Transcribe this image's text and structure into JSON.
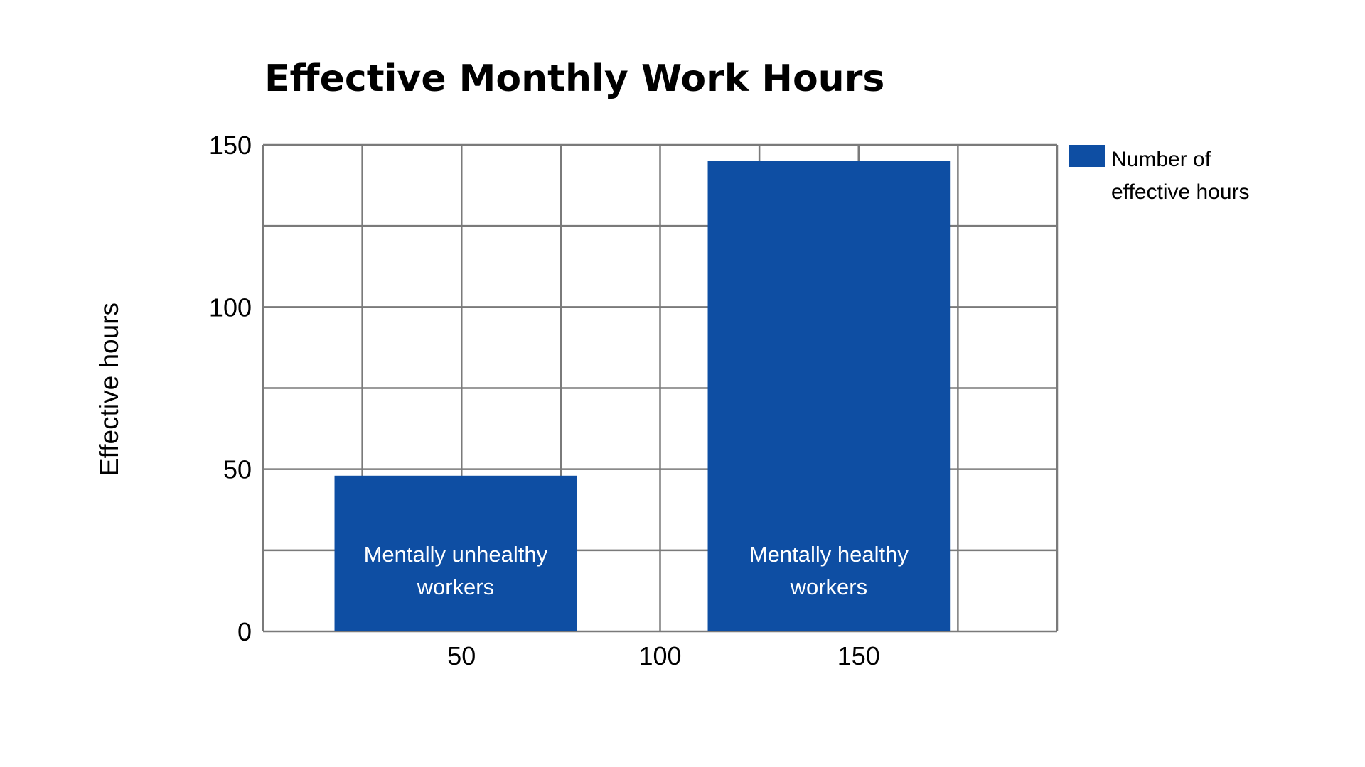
{
  "chart_data": {
    "type": "bar",
    "title": "Effective Monthly Work Hours",
    "ylabel": "Effective hours",
    "xlabel": "",
    "categories": [
      "Mentally unhealthy workers",
      "Mentally healthy workers"
    ],
    "category_label_lines": [
      [
        "Mentally unhealthy",
        "workers"
      ],
      [
        "Mentally healthy",
        "workers"
      ]
    ],
    "series": [
      {
        "name": "Number of effective hours",
        "name_lines": [
          "Number of",
          "effective hours"
        ],
        "color": "#0e4ea3",
        "values": [
          48,
          145
        ],
        "x_start": [
          18,
          112
        ],
        "x_end": [
          79,
          173
        ]
      }
    ],
    "ylim": [
      0,
      150
    ],
    "xlim": [
      0,
      200
    ],
    "y_ticks": [
      0,
      50,
      100,
      150
    ],
    "x_ticks": [
      50,
      100,
      150
    ],
    "y_gridlines": [
      25,
      50,
      75,
      100,
      125,
      150
    ],
    "x_gridlines": [
      25,
      50,
      75,
      100,
      125,
      150,
      175,
      200
    ],
    "grid": true,
    "legend_position": "right",
    "colors": {
      "grid": "#7a7a7a",
      "bar": "#0e4ea3",
      "text": "#000000",
      "bar_text": "#ffffff"
    }
  }
}
